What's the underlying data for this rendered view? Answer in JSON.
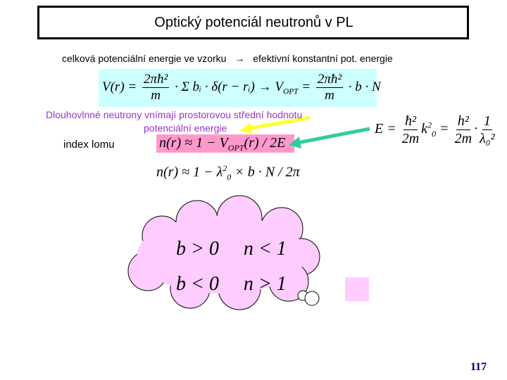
{
  "title": "Optický potenciál neutronů v PL",
  "intro": {
    "left": "celková potenciální energie ve vzorku",
    "arrow": "→",
    "right": "efektivní konstantní pot. energie"
  },
  "formula_potential": {
    "lhs": "V(r) =",
    "frac_num": "2πħ²",
    "frac_den": "m",
    "middle": "· Σ bᵢ · δ(r − rᵢ) → V",
    "sub": "OPT",
    "eq": "=",
    "frac2_num": "2πħ²",
    "frac2_den": "m",
    "rhs": "· b · N"
  },
  "note": [
    "Dlouhovlnné neutrony vnímají prostorovou střední hodnotu",
    "potenciální energie"
  ],
  "label": "index lomu",
  "formula_index": {
    "text": "n(r) ≈ 1 − V",
    "sub": "OPT",
    "rest": "(r) / 2E"
  },
  "formula_index2": {
    "text": "n(r) ≈ 1 − λ",
    "sup": "2",
    "sub": "0",
    "rest": "× b · N / 2π"
  },
  "formula_energy": {
    "lhs": "E =",
    "f1_num": "ħ²",
    "f1_den": "2m",
    "k": "k",
    "k_sup": "2",
    "k_sub": "0",
    "eq": "=",
    "f2_num": "h²",
    "f2_den": "2m",
    "dot": "·",
    "f3_num": "1",
    "f3_den": "λ₀²"
  },
  "cloud": [
    {
      "b": "b > 0",
      "n": "n < 1"
    },
    {
      "b": "b < 0",
      "n": "n > 1"
    }
  ],
  "page_number": "117"
}
